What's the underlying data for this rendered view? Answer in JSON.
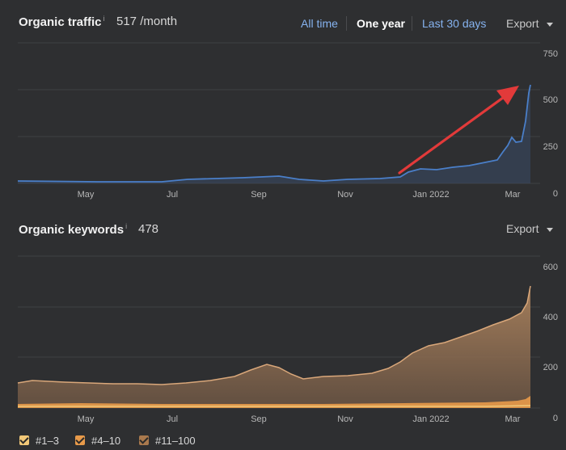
{
  "traffic": {
    "title": "Organic traffic",
    "info": "i",
    "value": "517 /month",
    "ranges": [
      "All time",
      "One year",
      "Last 30 days"
    ],
    "active_range": "One year",
    "export_label": "Export",
    "y_ticks": [
      "750",
      "500",
      "250",
      "0"
    ],
    "x_labels": [
      "May",
      "Jul",
      "Sep",
      "Nov",
      "Jan 2022",
      "Mar"
    ],
    "line_color": "#4a7fc9",
    "annotation_color": "#e23a3a"
  },
  "keywords": {
    "title": "Organic keywords",
    "info": "i",
    "value": "478",
    "export_label": "Export",
    "y_ticks": [
      "600",
      "400",
      "200",
      "0"
    ],
    "x_labels": [
      "May",
      "Jul",
      "Sep",
      "Nov",
      "Jan 2022",
      "Mar"
    ],
    "legend": [
      {
        "label": "#1–3",
        "color": "#f2c878"
      },
      {
        "label": "#4–10",
        "color": "#e89a4a"
      },
      {
        "label": "#11–100",
        "color": "#a9794d"
      }
    ]
  }
}
